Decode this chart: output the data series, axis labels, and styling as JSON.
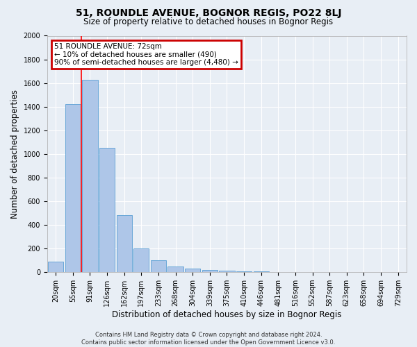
{
  "title": "51, ROUNDLE AVENUE, BOGNOR REGIS, PO22 8LJ",
  "subtitle": "Size of property relative to detached houses in Bognor Regis",
  "xlabel": "Distribution of detached houses by size in Bognor Regis",
  "ylabel": "Number of detached properties",
  "footer_line1": "Contains HM Land Registry data © Crown copyright and database right 2024.",
  "footer_line2": "Contains public sector information licensed under the Open Government Licence v3.0.",
  "bar_categories": [
    "20sqm",
    "55sqm",
    "91sqm",
    "126sqm",
    "162sqm",
    "197sqm",
    "233sqm",
    "268sqm",
    "304sqm",
    "339sqm",
    "375sqm",
    "410sqm",
    "446sqm",
    "481sqm",
    "516sqm",
    "552sqm",
    "587sqm",
    "623sqm",
    "658sqm",
    "694sqm",
    "729sqm"
  ],
  "bar_values": [
    90,
    1420,
    1630,
    1050,
    480,
    200,
    100,
    50,
    30,
    20,
    15,
    10,
    5,
    3,
    2,
    2,
    1,
    1,
    1,
    1,
    0
  ],
  "bar_color": "#aec6e8",
  "bar_edge_color": "#5a9fd4",
  "ylim": [
    0,
    2000
  ],
  "yticks": [
    0,
    200,
    400,
    600,
    800,
    1000,
    1200,
    1400,
    1600,
    1800,
    2000
  ],
  "red_line_x": 1.48,
  "annotation_title": "51 ROUNDLE AVENUE: 72sqm",
  "annotation_line1": "← 10% of detached houses are smaller (490)",
  "annotation_line2": "90% of semi-detached houses are larger (4,480) →",
  "annotation_box_color": "#cc0000",
  "bg_color": "#e8eef5",
  "plot_bg_color": "#e8eef5",
  "grid_color": "#ffffff",
  "title_fontsize": 10,
  "subtitle_fontsize": 8.5,
  "xlabel_fontsize": 8.5,
  "ylabel_fontsize": 8.5,
  "tick_fontsize": 7,
  "annot_fontsize": 7.5,
  "footer_fontsize": 6
}
